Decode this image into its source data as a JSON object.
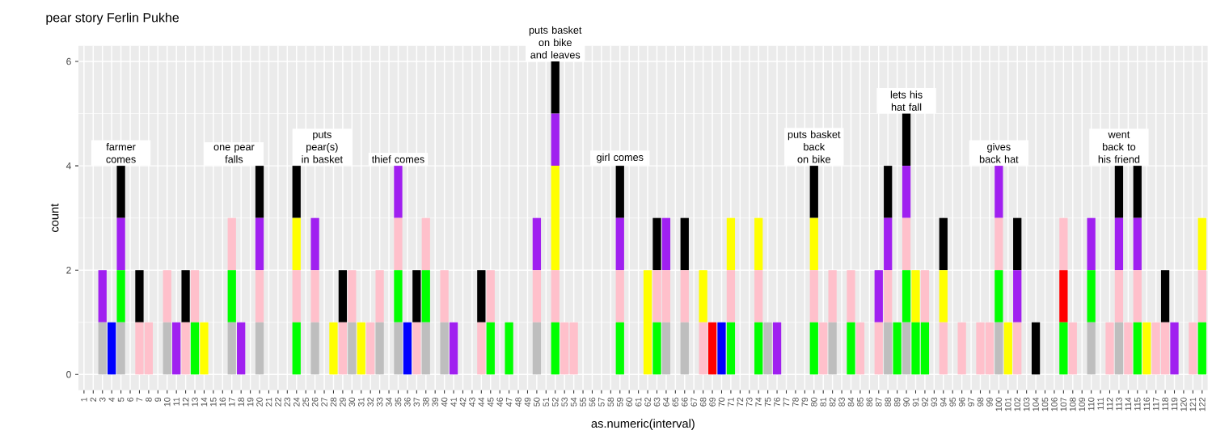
{
  "chart_data": {
    "type": "bar",
    "stacked": true,
    "title": "pear story Ferlin Pukhe",
    "xlabel": "as.numeric(interval)",
    "ylabel": "count",
    "categories": [
      "1",
      "2",
      "3",
      "4",
      "5",
      "6",
      "7",
      "8",
      "9",
      "10",
      "11",
      "12",
      "13",
      "14",
      "15",
      "16",
      "17",
      "18",
      "19",
      "20",
      "21",
      "22",
      "23",
      "24",
      "25",
      "26",
      "27",
      "28",
      "29",
      "30",
      "31",
      "32",
      "33",
      "34",
      "35",
      "36",
      "37",
      "38",
      "39",
      "40",
      "41",
      "42",
      "43",
      "44",
      "45",
      "46",
      "47",
      "48",
      "49",
      "50",
      "51",
      "52",
      "53",
      "54",
      "55",
      "56",
      "57",
      "58",
      "59",
      "60",
      "61",
      "62",
      "63",
      "64",
      "65",
      "66",
      "67",
      "68",
      "69",
      "70",
      "71",
      "72",
      "73",
      "74",
      "75",
      "76",
      "77",
      "78",
      "79",
      "80",
      "81",
      "82",
      "83",
      "84",
      "85",
      "86",
      "87",
      "88",
      "89",
      "90",
      "91",
      "92",
      "93",
      "94",
      "95",
      "96",
      "97",
      "98",
      "99",
      "100",
      "101",
      "102",
      "103",
      "104",
      "105",
      "106",
      "107",
      "108",
      "109",
      "110",
      "111",
      "112",
      "113",
      "114",
      "115",
      "116",
      "117",
      "118",
      "119",
      "120",
      "121",
      "122"
    ],
    "ylim": [
      -0.3,
      6.3
    ],
    "yticks": [
      0,
      2,
      4,
      6
    ],
    "grid": true,
    "series": [
      {
        "color": "#bebebe",
        "values": [
          0,
          0,
          1,
          0,
          1,
          0,
          0,
          0,
          0,
          1,
          0,
          0,
          0,
          0,
          0,
          0,
          1,
          0,
          0,
          1,
          0,
          0,
          0,
          0,
          0,
          1,
          0,
          0,
          0,
          1,
          0,
          0,
          1,
          0,
          1,
          0,
          0,
          1,
          0,
          1,
          0,
          0,
          0,
          0,
          0,
          0,
          0,
          0,
          0,
          1,
          0,
          0,
          0,
          0,
          0,
          0,
          0,
          0,
          0,
          0,
          0,
          0,
          0,
          1,
          0,
          1,
          0,
          0,
          0,
          0,
          0,
          0,
          0,
          0,
          1,
          0,
          0,
          0,
          0,
          0,
          0,
          1,
          0,
          0,
          0,
          0,
          0,
          1,
          0,
          1,
          0,
          0,
          0,
          0,
          0,
          0,
          0,
          0,
          0,
          1,
          0,
          0,
          0,
          0,
          0,
          0,
          0,
          0,
          0,
          1,
          0,
          0,
          1,
          0,
          0,
          0,
          0,
          0,
          0,
          0,
          0,
          0
        ]
      },
      {
        "color": "#0000ff",
        "values": [
          0,
          0,
          0,
          1,
          0,
          0,
          0,
          0,
          0,
          0,
          0,
          0,
          0,
          0,
          0,
          0,
          0,
          0,
          0,
          0,
          0,
          0,
          0,
          0,
          0,
          0,
          0,
          0,
          0,
          0,
          0,
          0,
          0,
          0,
          0,
          1,
          0,
          0,
          0,
          0,
          0,
          0,
          0,
          0,
          0,
          0,
          0,
          0,
          0,
          0,
          0,
          0,
          0,
          0,
          0,
          0,
          0,
          0,
          0,
          0,
          0,
          0,
          0,
          0,
          0,
          0,
          0,
          0,
          0,
          1,
          0,
          0,
          0,
          0,
          0,
          0,
          0,
          0,
          0,
          0,
          0,
          0,
          0,
          0,
          0,
          0,
          0,
          0,
          0,
          0,
          0,
          0,
          0,
          0,
          0,
          0,
          0,
          0,
          0,
          0,
          0,
          0,
          0,
          0,
          0,
          0,
          0,
          0,
          0,
          0,
          0,
          0,
          0,
          0,
          0,
          0,
          0,
          0,
          0,
          0,
          0,
          0
        ]
      },
      {
        "color": "#00ff00",
        "values": [
          0,
          0,
          0,
          0,
          1,
          0,
          0,
          0,
          0,
          0,
          0,
          0,
          1,
          0,
          0,
          0,
          1,
          0,
          0,
          0,
          0,
          0,
          0,
          1,
          0,
          0,
          0,
          0,
          0,
          0,
          0,
          0,
          0,
          0,
          1,
          0,
          0,
          1,
          0,
          0,
          0,
          0,
          0,
          0,
          1,
          0,
          1,
          0,
          0,
          0,
          0,
          1,
          0,
          0,
          0,
          0,
          0,
          0,
          1,
          0,
          0,
          0,
          1,
          0,
          0,
          0,
          0,
          0,
          0,
          0,
          1,
          0,
          0,
          1,
          0,
          0,
          0,
          0,
          0,
          1,
          0,
          0,
          0,
          1,
          0,
          0,
          0,
          0,
          1,
          1,
          1,
          1,
          0,
          0,
          0,
          0,
          0,
          0,
          0,
          1,
          0,
          0,
          0,
          0,
          0,
          0,
          1,
          0,
          0,
          1,
          0,
          0,
          0,
          0,
          1,
          0,
          0,
          0,
          0,
          0,
          0,
          1
        ]
      },
      {
        "color": "#ff0000",
        "values": [
          0,
          0,
          0,
          0,
          0,
          0,
          0,
          0,
          0,
          0,
          0,
          0,
          0,
          0,
          0,
          0,
          0,
          0,
          0,
          0,
          0,
          0,
          0,
          0,
          0,
          0,
          0,
          0,
          0,
          0,
          0,
          0,
          0,
          0,
          0,
          0,
          0,
          0,
          0,
          0,
          0,
          0,
          0,
          0,
          0,
          0,
          0,
          0,
          0,
          0,
          0,
          0,
          0,
          0,
          0,
          0,
          0,
          0,
          0,
          0,
          0,
          0,
          0,
          0,
          0,
          0,
          0,
          0,
          1,
          0,
          0,
          0,
          0,
          0,
          0,
          0,
          0,
          0,
          0,
          0,
          0,
          0,
          0,
          0,
          0,
          0,
          0,
          0,
          0,
          0,
          0,
          0,
          0,
          0,
          0,
          0,
          0,
          0,
          0,
          0,
          0,
          0,
          0,
          0,
          0,
          0,
          1,
          0,
          0,
          0,
          0,
          0,
          0,
          0,
          0,
          0,
          0,
          0,
          0,
          0,
          0,
          0
        ]
      },
      {
        "color": "#ffc0cb",
        "values": [
          0,
          0,
          0,
          0,
          0,
          0,
          1,
          1,
          0,
          1,
          0,
          1,
          1,
          0,
          0,
          0,
          1,
          0,
          0,
          1,
          0,
          0,
          0,
          1,
          0,
          1,
          0,
          0,
          1,
          1,
          0,
          1,
          1,
          0,
          1,
          0,
          1,
          1,
          0,
          1,
          0,
          0,
          0,
          1,
          1,
          0,
          0,
          0,
          0,
          1,
          0,
          1,
          1,
          1,
          0,
          0,
          0,
          0,
          1,
          0,
          0,
          0,
          1,
          1,
          0,
          1,
          0,
          1,
          0,
          0,
          1,
          0,
          0,
          1,
          0,
          0,
          0,
          0,
          0,
          1,
          1,
          1,
          0,
          1,
          1,
          0,
          1,
          1,
          0,
          1,
          0,
          1,
          0,
          1,
          0,
          1,
          0,
          1,
          1,
          1,
          0,
          1,
          0,
          0,
          0,
          0,
          1,
          1,
          0,
          0,
          0,
          1,
          1,
          1,
          1,
          0,
          1,
          1,
          0,
          0,
          1,
          1
        ]
      },
      {
        "color": "#ffff00",
        "values": [
          0,
          0,
          0,
          0,
          0,
          0,
          0,
          0,
          0,
          0,
          0,
          0,
          0,
          1,
          0,
          0,
          0,
          0,
          0,
          0,
          0,
          0,
          0,
          1,
          0,
          0,
          0,
          1,
          0,
          0,
          1,
          0,
          0,
          0,
          0,
          0,
          0,
          0,
          0,
          0,
          0,
          0,
          0,
          0,
          0,
          0,
          0,
          0,
          0,
          0,
          0,
          2,
          0,
          0,
          0,
          0,
          0,
          0,
          0,
          0,
          0,
          2,
          0,
          0,
          0,
          0,
          0,
          1,
          0,
          0,
          1,
          0,
          0,
          1,
          0,
          0,
          0,
          0,
          0,
          1,
          0,
          0,
          0,
          0,
          0,
          0,
          0,
          0,
          0,
          0,
          1,
          0,
          0,
          1,
          0,
          0,
          0,
          0,
          0,
          0,
          1,
          0,
          0,
          0,
          0,
          0,
          0,
          0,
          0,
          0,
          0,
          0,
          0,
          0,
          0,
          1,
          0,
          0,
          0,
          0,
          0,
          1
        ]
      },
      {
        "color": "#a020f0",
        "values": [
          0,
          0,
          1,
          0,
          1,
          0,
          0,
          0,
          0,
          0,
          1,
          0,
          0,
          0,
          0,
          0,
          0,
          1,
          0,
          1,
          0,
          0,
          0,
          0,
          0,
          1,
          0,
          0,
          0,
          0,
          0,
          0,
          0,
          0,
          1,
          0,
          0,
          0,
          0,
          0,
          1,
          0,
          0,
          0,
          0,
          0,
          0,
          0,
          0,
          1,
          0,
          1,
          0,
          0,
          0,
          0,
          0,
          0,
          1,
          0,
          0,
          0,
          0,
          1,
          0,
          0,
          0,
          0,
          0,
          0,
          0,
          0,
          0,
          0,
          0,
          1,
          0,
          0,
          0,
          0,
          0,
          0,
          0,
          0,
          0,
          0,
          1,
          1,
          0,
          1,
          0,
          0,
          0,
          0,
          0,
          0,
          0,
          0,
          0,
          1,
          0,
          1,
          0,
          0,
          0,
          0,
          0,
          0,
          0,
          1,
          0,
          0,
          1,
          0,
          1,
          0,
          0,
          0,
          1,
          0,
          0,
          0
        ]
      },
      {
        "color": "#000000",
        "values": [
          0,
          0,
          0,
          0,
          1,
          0,
          1,
          0,
          0,
          0,
          0,
          1,
          0,
          0,
          0,
          0,
          0,
          0,
          0,
          1,
          0,
          0,
          0,
          1,
          0,
          0,
          0,
          0,
          1,
          0,
          0,
          0,
          0,
          0,
          0,
          0,
          1,
          0,
          0,
          0,
          0,
          0,
          0,
          1,
          0,
          0,
          0,
          0,
          0,
          0,
          0,
          1,
          0,
          0,
          0,
          0,
          0,
          0,
          1,
          0,
          0,
          0,
          1,
          0,
          0,
          1,
          0,
          0,
          0,
          0,
          0,
          0,
          0,
          0,
          0,
          0,
          0,
          0,
          0,
          1,
          0,
          0,
          0,
          0,
          0,
          0,
          0,
          1,
          0,
          1,
          0,
          0,
          0,
          1,
          0,
          0,
          0,
          0,
          0,
          0,
          0,
          1,
          0,
          1,
          0,
          0,
          0,
          0,
          0,
          0,
          0,
          0,
          1,
          0,
          1,
          0,
          0,
          1,
          0,
          0,
          0,
          0
        ]
      }
    ],
    "annotations": [
      {
        "text": "farmer comes",
        "x": "5",
        "y": 4
      },
      {
        "text": "one pear falls",
        "x": "20",
        "y": 4
      },
      {
        "text": "puts pear(s) in basket",
        "x": "24",
        "y": 4
      },
      {
        "text": "thief comes",
        "x": "35",
        "y": 4
      },
      {
        "text": "puts basket on bike and leaves",
        "x": "52",
        "y": 6
      },
      {
        "text": "girl comes",
        "x": "59",
        "y": 4
      },
      {
        "text": "puts basket back on bike",
        "x": "80",
        "y": 4
      },
      {
        "text": "lets his hat fall",
        "x": "90",
        "y": 5
      },
      {
        "text": "gives back hat",
        "x": "100",
        "y": 4
      },
      {
        "text": "went back to his friend",
        "x": "113",
        "y": 4
      }
    ]
  }
}
